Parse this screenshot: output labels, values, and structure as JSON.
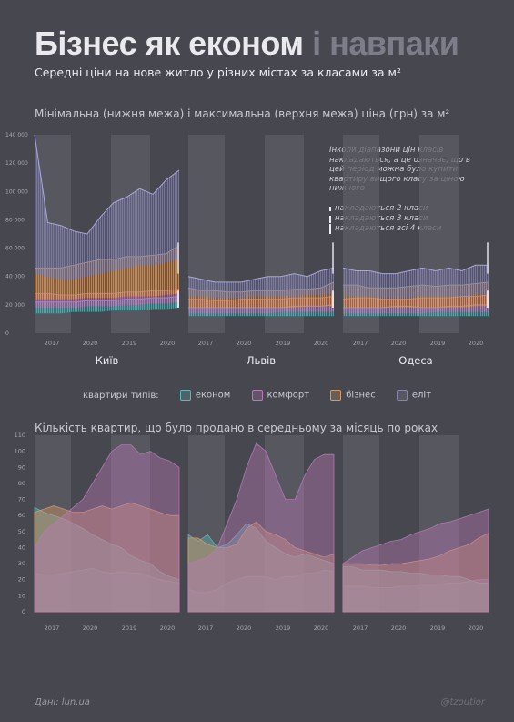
{
  "header": {
    "title_part1": "Бізнес як економ",
    "title_part2": "і навпаки",
    "subtitle": "Середні ціни на нове житло у різних містах за класами за м²"
  },
  "section1": {
    "title": "Мінімальна (нижня межа) і максимальна (верхня межа) ціна (грн) за м²",
    "note": "Інколи діапазони цін класів накладаються, а це означає, що в цей період можна було купити квартиру вищого класу за ціною нижчого",
    "keys": [
      {
        "label": "накладаються 2 класи",
        "bars": 1
      },
      {
        "label": "накладаються 3 класи",
        "bars": 2
      },
      {
        "label": "накладаються всі 4 класи",
        "bars": 3
      }
    ]
  },
  "section2": {
    "title": "Кількість квартир, що було продано в середньому за місяць по роках"
  },
  "legend": {
    "title": "квартири типів:",
    "items": [
      {
        "label": "економ",
        "color": "#5fb7b7"
      },
      {
        "label": "комфорт",
        "color": "#b97ab8"
      },
      {
        "label": "бізнес",
        "color": "#d89a64"
      },
      {
        "label": "еліт",
        "color": "#8585a8"
      }
    ]
  },
  "footer": {
    "source": "Дані: lun.ua",
    "credit": "@tzoutior"
  },
  "colors": {
    "economy": "#5fb7b7",
    "comfort": "#b97ab8",
    "business": "#d89a64",
    "elite": "#8585a8",
    "elite_top": "#b4b4ee",
    "band": "#5c5c66"
  },
  "chart_data": [
    {
      "type": "area",
      "id": "prices",
      "title": "Мінімальна (нижня межа) і максимальна (верхня межа) ціна (грн) за м²",
      "ylim": [
        0,
        140000
      ],
      "yticks": [
        0,
        20000,
        40000,
        60000,
        80000,
        100000,
        120000,
        140000
      ],
      "ytick_labels": [
        "0",
        "20 000",
        "40 000",
        "60 000",
        "80 000",
        "100 000",
        "120 000",
        "140 000"
      ],
      "xticks": [
        "2017",
        "2020",
        "2019",
        "2020"
      ],
      "cities": [
        {
          "name": "Київ",
          "series": [
            {
              "name": "економ",
              "low": [
                14000,
                14000,
                14000,
                15000,
                15000,
                15000,
                16000,
                16000,
                16000,
                17000,
                17000,
                18000
              ],
              "high": [
                22000,
                22000,
                22000,
                22000,
                23000,
                23000,
                23000,
                24000,
                24000,
                25000,
                25000,
                26000
              ]
            },
            {
              "name": "комфорт",
              "low": [
                18000,
                18000,
                18000,
                18000,
                19000,
                19000,
                19000,
                20000,
                20000,
                21000,
                21000,
                22000
              ],
              "high": [
                28000,
                28000,
                27000,
                27000,
                28000,
                28000,
                28000,
                29000,
                29000,
                30000,
                30000,
                31000
              ]
            },
            {
              "name": "бізнес",
              "low": [
                24000,
                24000,
                24000,
                24000,
                25000,
                25000,
                25000,
                26000,
                26000,
                26000,
                27000,
                28000
              ],
              "high": [
                46000,
                46000,
                46000,
                48000,
                50000,
                52000,
                52000,
                54000,
                54000,
                55000,
                56000,
                62000
              ]
            },
            {
              "name": "еліт",
              "low": [
                42000,
                40000,
                38000,
                38000,
                40000,
                42000,
                44000,
                46000,
                48000,
                48000,
                50000,
                52000
              ],
              "high": [
                140000,
                78000,
                76000,
                72000,
                70000,
                82000,
                92000,
                96000,
                102000,
                98000,
                108000,
                115000
              ]
            }
          ]
        },
        {
          "name": "Львів",
          "series": [
            {
              "name": "економ",
              "low": [
                12000,
                12000,
                12000,
                12000,
                12000,
                12000,
                12000,
                12000,
                12000,
                12000,
                12000,
                12000
              ],
              "high": [
                18000,
                18000,
                18000,
                18000,
                18000,
                18000,
                18000,
                18000,
                19000,
                19000,
                19000,
                20000
              ]
            },
            {
              "name": "комфорт",
              "low": [
                14000,
                14000,
                14000,
                14000,
                14000,
                14000,
                14000,
                15000,
                15000,
                15000,
                15000,
                15000
              ],
              "high": [
                24000,
                24000,
                23000,
                23000,
                24000,
                24000,
                24000,
                24000,
                25000,
                25000,
                25000,
                26000
              ]
            },
            {
              "name": "бізнес",
              "low": [
                18000,
                18000,
                18000,
                18000,
                18000,
                18000,
                18000,
                18000,
                18000,
                19000,
                19000,
                19000
              ],
              "high": [
                32000,
                30000,
                30000,
                29000,
                29000,
                30000,
                30000,
                30000,
                31000,
                31000,
                32000,
                36000
              ]
            },
            {
              "name": "еліт",
              "low": [
                26000,
                26000,
                25000,
                25000,
                25000,
                26000,
                26000,
                26000,
                26000,
                27000,
                27000,
                28000
              ],
              "high": [
                40000,
                38000,
                36000,
                36000,
                36000,
                38000,
                40000,
                40000,
                42000,
                40000,
                44000,
                46000
              ]
            }
          ]
        },
        {
          "name": "Одеса",
          "series": [
            {
              "name": "економ",
              "low": [
                12000,
                12000,
                12000,
                12000,
                12000,
                12000,
                12000,
                12000,
                12000,
                12000,
                12000,
                12000
              ],
              "high": [
                18000,
                18000,
                18000,
                18000,
                19000,
                19000,
                18000,
                18000,
                19000,
                19000,
                20000,
                20000
              ]
            },
            {
              "name": "комфорт",
              "low": [
                14000,
                14000,
                14000,
                14000,
                14000,
                14000,
                14000,
                15000,
                15000,
                15000,
                15000,
                15000
              ],
              "high": [
                24000,
                25000,
                25000,
                24000,
                24000,
                24000,
                25000,
                25000,
                25000,
                26000,
                26000,
                27000
              ]
            },
            {
              "name": "бізнес",
              "low": [
                18000,
                18000,
                18000,
                18000,
                18000,
                18000,
                18000,
                18000,
                18000,
                18000,
                19000,
                19000
              ],
              "high": [
                34000,
                34000,
                32000,
                32000,
                32000,
                33000,
                34000,
                33000,
                34000,
                34000,
                35000,
                36000
              ]
            },
            {
              "name": "еліт",
              "low": [
                26000,
                26000,
                26000,
                25000,
                25000,
                25000,
                26000,
                26000,
                26000,
                26000,
                27000,
                27000
              ],
              "high": [
                46000,
                44000,
                44000,
                42000,
                42000,
                44000,
                46000,
                44000,
                46000,
                44000,
                48000,
                48000
              ]
            }
          ]
        }
      ]
    },
    {
      "type": "area",
      "id": "sales",
      "title": "Кількість квартир, що було продано в середньому за місяць по роках",
      "ylim": [
        0,
        110
      ],
      "yticks": [
        0,
        10,
        20,
        30,
        40,
        50,
        60,
        70,
        80,
        90,
        100,
        110
      ],
      "xticks": [
        "2017",
        "2020",
        "2019",
        "2020"
      ],
      "cities": [
        {
          "name": "Київ",
          "series": [
            {
              "name": "еліт",
              "values": [
                24,
                23,
                23,
                24,
                25,
                26,
                27,
                25,
                24,
                25,
                24,
                24,
                22,
                20,
                19,
                18
              ]
            },
            {
              "name": "економ",
              "values": [
                65,
                62,
                60,
                58,
                55,
                52,
                48,
                45,
                42,
                40,
                35,
                32,
                30,
                25,
                22,
                20
              ]
            },
            {
              "name": "бізнес",
              "values": [
                62,
                64,
                66,
                64,
                62,
                62,
                64,
                66,
                64,
                66,
                68,
                66,
                64,
                62,
                60,
                60
              ]
            },
            {
              "name": "комфорт",
              "values": [
                40,
                50,
                55,
                60,
                65,
                70,
                80,
                90,
                100,
                104,
                104,
                98,
                100,
                96,
                94,
                90
              ]
            }
          ]
        },
        {
          "name": "Львів",
          "series": [
            {
              "name": "еліт",
              "values": [
                14,
                12,
                12,
                14,
                18,
                20,
                22,
                22,
                22,
                20,
                22,
                22,
                24,
                24,
                26,
                25
              ]
            },
            {
              "name": "економ",
              "values": [
                48,
                44,
                48,
                40,
                42,
                48,
                55,
                52,
                44,
                40,
                36,
                34,
                36,
                34,
                32,
                30
              ]
            },
            {
              "name": "бізнес",
              "values": [
                46,
                46,
                42,
                40,
                40,
                42,
                52,
                56,
                50,
                48,
                45,
                40,
                38,
                36,
                34,
                36
              ]
            },
            {
              "name": "комфорт",
              "values": [
                30,
                32,
                34,
                40,
                55,
                70,
                90,
                105,
                100,
                85,
                70,
                70,
                85,
                95,
                98,
                98
              ]
            }
          ]
        },
        {
          "name": "Одеса",
          "series": [
            {
              "name": "еліт",
              "values": [
                16,
                16,
                16,
                15,
                15,
                15,
                16,
                16,
                17,
                17,
                17,
                18,
                18,
                19,
                20,
                20
              ]
            },
            {
              "name": "економ",
              "values": [
                28,
                28,
                26,
                26,
                26,
                25,
                25,
                24,
                24,
                23,
                23,
                22,
                22,
                20,
                18,
                18
              ]
            },
            {
              "name": "бізнес",
              "values": [
                30,
                30,
                30,
                29,
                29,
                30,
                30,
                31,
                32,
                33,
                35,
                38,
                40,
                42,
                46,
                49
              ]
            },
            {
              "name": "комфорт",
              "values": [
                30,
                34,
                38,
                40,
                42,
                44,
                45,
                48,
                50,
                52,
                55,
                56,
                58,
                60,
                62,
                64
              ]
            }
          ]
        }
      ]
    }
  ]
}
